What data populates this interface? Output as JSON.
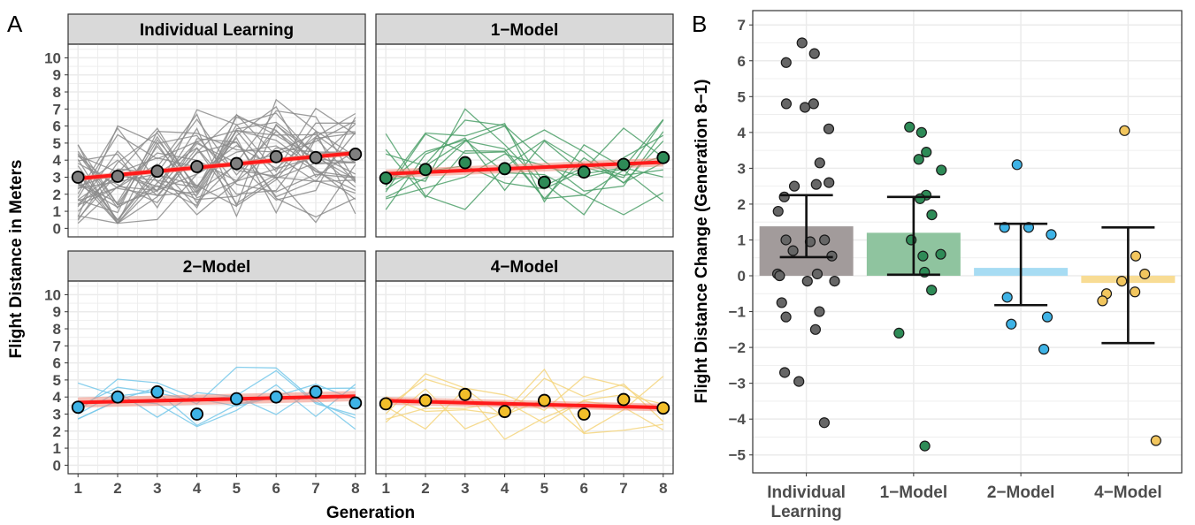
{
  "figure": {
    "panel_a_letter": "A",
    "panel_b_letter": "B"
  },
  "chart_data": [
    {
      "type": "line",
      "panel": "A",
      "xlabel": "Generation",
      "ylabel": "Flight Distance in Meters",
      "x": [
        1,
        2,
        3,
        4,
        5,
        6,
        7,
        8
      ],
      "xlim": [
        0.75,
        8.25
      ],
      "ylim": [
        -0.5,
        10.8
      ],
      "yticks": [
        0,
        1,
        2,
        3,
        4,
        5,
        6,
        7,
        8,
        9,
        10
      ],
      "grid": true,
      "facets": [
        {
          "title": "Individual Learning",
          "color": "#8c8c8c",
          "point_fill": "#7f7f7f",
          "mean": [
            3.0,
            3.05,
            3.35,
            3.62,
            3.8,
            4.2,
            4.15,
            4.35
          ],
          "fit": {
            "start": 2.92,
            "end": 4.42,
            "ci": 0.32
          },
          "individual_lines": 32,
          "line_range": [
            0.3,
            9.6
          ]
        },
        {
          "title": "1−Model",
          "color": "#4da06a",
          "point_fill": "#2e8b57",
          "mean": [
            2.95,
            3.45,
            3.85,
            3.5,
            2.7,
            3.3,
            3.75,
            4.15
          ],
          "fit": {
            "start": 3.2,
            "end": 3.88,
            "ci": 0.5
          },
          "individual_lines": 12,
          "line_range": [
            0.8,
            8.2
          ]
        },
        {
          "title": "2−Model",
          "color": "#76c8ea",
          "point_fill": "#3eb3e6",
          "mean": [
            3.4,
            4.0,
            4.3,
            3.0,
            3.9,
            4.0,
            4.3,
            3.65
          ],
          "fit": {
            "start": 3.68,
            "end": 4.05,
            "ci": 0.6
          },
          "individual_lines": 6,
          "line_range": [
            1.5,
            6.7
          ]
        },
        {
          "title": "4−Model",
          "color": "#f5d57c",
          "point_fill": "#f2be2a",
          "mean": [
            3.6,
            3.8,
            4.15,
            3.15,
            3.8,
            3.0,
            3.85,
            3.35
          ],
          "fit": {
            "start": 3.78,
            "end": 3.38,
            "ci": 0.45
          },
          "individual_lines": 6,
          "line_range": [
            1.5,
            6.8
          ]
        }
      ]
    },
    {
      "type": "bar",
      "panel": "B",
      "ylabel": "Flight Distance Change (Generation 8−1)",
      "categories": [
        "Individual\nLearning",
        "1−Model",
        "2−Model",
        "4−Model"
      ],
      "means": [
        1.38,
        1.2,
        0.22,
        -0.2
      ],
      "ci": [
        [
          0.52,
          2.25
        ],
        [
          0.03,
          2.2
        ],
        [
          -0.82,
          1.45
        ],
        [
          -1.88,
          1.35
        ]
      ],
      "ylim": [
        -5.5,
        7.4
      ],
      "yticks": [
        -5,
        -4,
        -3,
        -2,
        -1,
        0,
        1,
        2,
        3,
        4,
        5,
        6,
        7
      ],
      "grid": true,
      "colors": {
        "bar": [
          "#a29b9b",
          "#8fc49f",
          "#a7dcf3",
          "#f8dc94"
        ],
        "point": [
          "#666666",
          "#2e8b57",
          "#3eb3e6",
          "#f2c65e"
        ]
      },
      "points": [
        [
          6.5,
          6.2,
          5.95,
          4.8,
          4.8,
          4.7,
          4.1,
          3.15,
          2.6,
          2.5,
          2.55,
          2.2,
          1.8,
          1.0,
          1.0,
          0.95,
          0.7,
          0.55,
          0.05,
          0.05,
          0.0,
          -0.15,
          -0.15,
          -0.75,
          -1.0,
          -1.15,
          -1.5,
          -2.7,
          -2.95,
          -4.1
        ],
        [
          4.15,
          4.0,
          3.45,
          3.25,
          2.95,
          2.25,
          2.15,
          1.7,
          1.0,
          0.6,
          0.55,
          0.1,
          -0.4,
          -1.6,
          -4.75
        ],
        [
          3.1,
          1.35,
          1.35,
          1.15,
          -0.6,
          -1.15,
          -1.35,
          -2.05
        ],
        [
          4.05,
          0.55,
          0.05,
          -0.15,
          -0.45,
          -0.5,
          -0.7,
          -4.6
        ]
      ]
    }
  ]
}
